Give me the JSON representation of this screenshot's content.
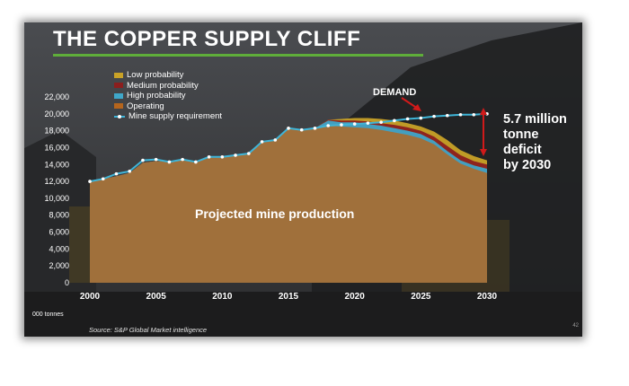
{
  "slide": {
    "title": "THE COPPER SUPPLY CLIFF",
    "unit_label": "000 tonnes",
    "source": "Source: S&P Global Market intelligence",
    "page_number": "42",
    "demand_label": "DEMAND",
    "production_label": "Projected mine production",
    "deficit_lines": [
      "5.7 million",
      "tonne",
      "deficit",
      "by 2030"
    ]
  },
  "colors": {
    "low_probability": "#c9a227",
    "medium_probability": "#8b1e1e",
    "high_probability": "#3fa7c9",
    "operating": "#b5651d",
    "demand_line": "#3fb5d8",
    "title_rule": "#5fae3a",
    "arrow": "#d11a1a"
  },
  "chart_data": {
    "type": "area",
    "x": [
      2000,
      2001,
      2002,
      2003,
      2004,
      2005,
      2006,
      2007,
      2008,
      2009,
      2010,
      2011,
      2012,
      2013,
      2014,
      2015,
      2016,
      2017,
      2018,
      2019,
      2020,
      2021,
      2022,
      2023,
      2024,
      2025,
      2026,
      2027,
      2028,
      2029,
      2030
    ],
    "xticks": [
      2000,
      2005,
      2010,
      2015,
      2020,
      2025,
      2030
    ],
    "yticks": [
      0,
      2000,
      4000,
      6000,
      8000,
      10000,
      12000,
      14000,
      16000,
      18000,
      20000,
      22000
    ],
    "ylim": [
      0,
      22000
    ],
    "xlim": [
      2000,
      2030
    ],
    "xlabel": "",
    "ylabel": "000 tonnes",
    "legend": [
      "Low probability",
      "Medium probability",
      "High probability",
      "Operating",
      "Mine supply requirement"
    ],
    "legend_position": "top-left",
    "series": [
      {
        "name": "Operating",
        "values": [
          12000,
          12300,
          12600,
          13000,
          14200,
          14400,
          14300,
          14600,
          14400,
          14800,
          14800,
          15100,
          15300,
          16700,
          16900,
          18300,
          18100,
          18300,
          18600,
          18500,
          18400,
          18300,
          18100,
          17800,
          17500,
          17100,
          16400,
          15200,
          14100,
          13500,
          13000
        ]
      },
      {
        "name": "High probability",
        "values": [
          12000,
          12300,
          12600,
          13000,
          14200,
          14400,
          14300,
          14600,
          14400,
          14800,
          14800,
          15100,
          15300,
          16700,
          16900,
          18300,
          18100,
          18300,
          19200,
          19000,
          19000,
          18800,
          18600,
          18300,
          18000,
          17600,
          16800,
          15600,
          14500,
          13900,
          13500
        ]
      },
      {
        "name": "Medium probability",
        "values": [
          12000,
          12300,
          12600,
          13000,
          14200,
          14400,
          14300,
          14600,
          14400,
          14800,
          14800,
          15100,
          15300,
          16700,
          16900,
          18300,
          18100,
          18300,
          19300,
          19200,
          19200,
          19100,
          18900,
          18700,
          18400,
          18000,
          17300,
          16200,
          15100,
          14400,
          14000
        ]
      },
      {
        "name": "Low probability",
        "values": [
          12000,
          12300,
          12600,
          13000,
          14200,
          14400,
          14300,
          14600,
          14400,
          14800,
          14800,
          15100,
          15300,
          16700,
          16900,
          18300,
          18100,
          18300,
          19300,
          19400,
          19500,
          19500,
          19400,
          19200,
          18900,
          18500,
          17900,
          16900,
          15700,
          15000,
          14500
        ]
      },
      {
        "name": "Mine supply requirement",
        "values": [
          12000,
          12300,
          12900,
          13200,
          14500,
          14600,
          14300,
          14600,
          14300,
          14900,
          14900,
          15100,
          15300,
          16700,
          16900,
          18300,
          18100,
          18300,
          18600,
          18700,
          18800,
          18900,
          19000,
          19200,
          19400,
          19500,
          19700,
          19800,
          19900,
          19900,
          20000
        ]
      }
    ]
  }
}
